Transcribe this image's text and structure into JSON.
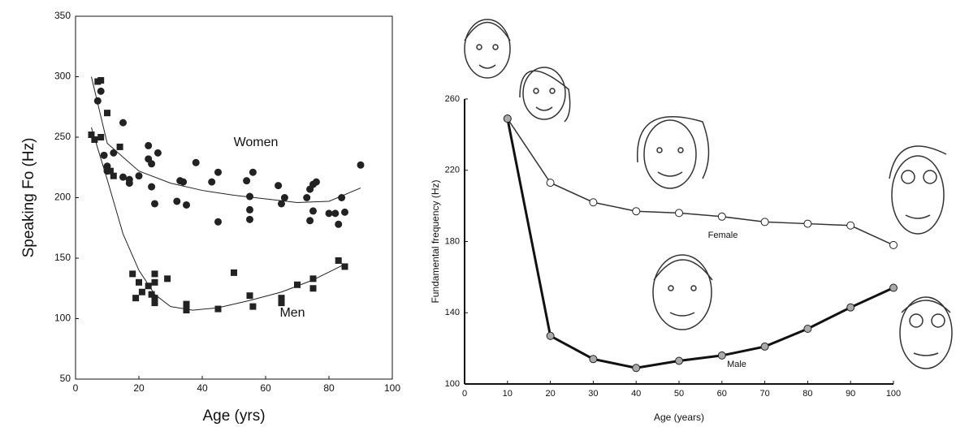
{
  "chart_data": [
    {
      "type": "scatter",
      "xlabel": "Age (yrs)",
      "ylabel": "Speaking Fo (Hz)",
      "xlim": [
        0,
        100
      ],
      "ylim": [
        50,
        350
      ],
      "xticks": [
        0,
        20,
        40,
        60,
        80,
        100
      ],
      "yticks": [
        50,
        100,
        150,
        200,
        250,
        300,
        350
      ],
      "series": [
        {
          "name": "Women",
          "color": "#222222",
          "marker": "circle",
          "x": [
            9,
            10,
            10,
            12,
            15,
            15,
            17,
            17,
            20,
            23,
            23,
            24,
            24,
            25,
            26,
            32,
            33,
            34,
            35,
            38,
            43,
            45,
            45,
            54,
            55,
            55,
            56,
            55,
            64,
            65,
            66,
            73,
            74,
            74,
            75,
            75,
            76,
            80,
            82,
            83,
            84,
            85,
            90,
            8,
            7
          ],
          "values": [
            235,
            222,
            226,
            237,
            262,
            217,
            215,
            212,
            218,
            243,
            232,
            228,
            209,
            195,
            237,
            197,
            214,
            213,
            194,
            229,
            213,
            221,
            180,
            214,
            190,
            201,
            221,
            182,
            210,
            195,
            200,
            200,
            207,
            181,
            189,
            211,
            213,
            187,
            187,
            178,
            200,
            188,
            227,
            288,
            280
          ],
          "fit": {
            "x": [
              5,
              10,
              20,
              30,
              40,
              50,
              60,
              70,
              80,
              90
            ],
            "values": [
              300,
              245,
              222,
              212,
              206,
              202,
              199,
              196,
              197,
              208
            ]
          }
        },
        {
          "name": "Men",
          "color": "#222222",
          "marker": "square",
          "x": [
            5,
            6,
            7,
            8,
            8,
            10,
            11,
            12,
            14,
            18,
            19,
            20,
            21,
            23,
            24,
            25,
            25,
            25,
            25,
            29,
            35,
            35,
            45,
            50,
            55,
            56,
            65,
            65,
            70,
            75,
            75,
            83,
            85
          ],
          "values": [
            252,
            248,
            296,
            297,
            250,
            270,
            222,
            218,
            242,
            137,
            117,
            130,
            122,
            127,
            120,
            137,
            130,
            113,
            117,
            133,
            112,
            107,
            108,
            138,
            119,
            110,
            113,
            117,
            128,
            133,
            125,
            148,
            143
          ],
          "fit": {
            "x": [
              5,
              10,
              15,
              20,
              25,
              30,
              37,
              45,
              55,
              65,
              75,
              85
            ],
            "values": [
              258,
              215,
              170,
              140,
              120,
              110,
              107,
              109,
              115,
              122,
              132,
              145
            ]
          }
        }
      ]
    },
    {
      "type": "line",
      "xlabel": "Age (years)",
      "ylabel": "Fundamental frequency (Hz)",
      "xlim": [
        0,
        100
      ],
      "ylim": [
        100,
        260
      ],
      "xticks": [
        0,
        10,
        20,
        30,
        40,
        50,
        60,
        70,
        80,
        90,
        100
      ],
      "yticks": [
        100,
        140,
        180,
        220,
        260
      ],
      "x": [
        10,
        20,
        30,
        40,
        50,
        60,
        70,
        80,
        90,
        100
      ],
      "series": [
        {
          "name": "Female",
          "color": "#333333",
          "values": [
            249,
            213,
            202,
            197,
            196,
            194,
            191,
            190,
            189,
            178
          ]
        },
        {
          "name": "Male",
          "color": "#111111",
          "values": [
            249,
            127,
            114,
            109,
            113,
            116,
            121,
            131,
            143,
            154
          ]
        }
      ]
    }
  ]
}
